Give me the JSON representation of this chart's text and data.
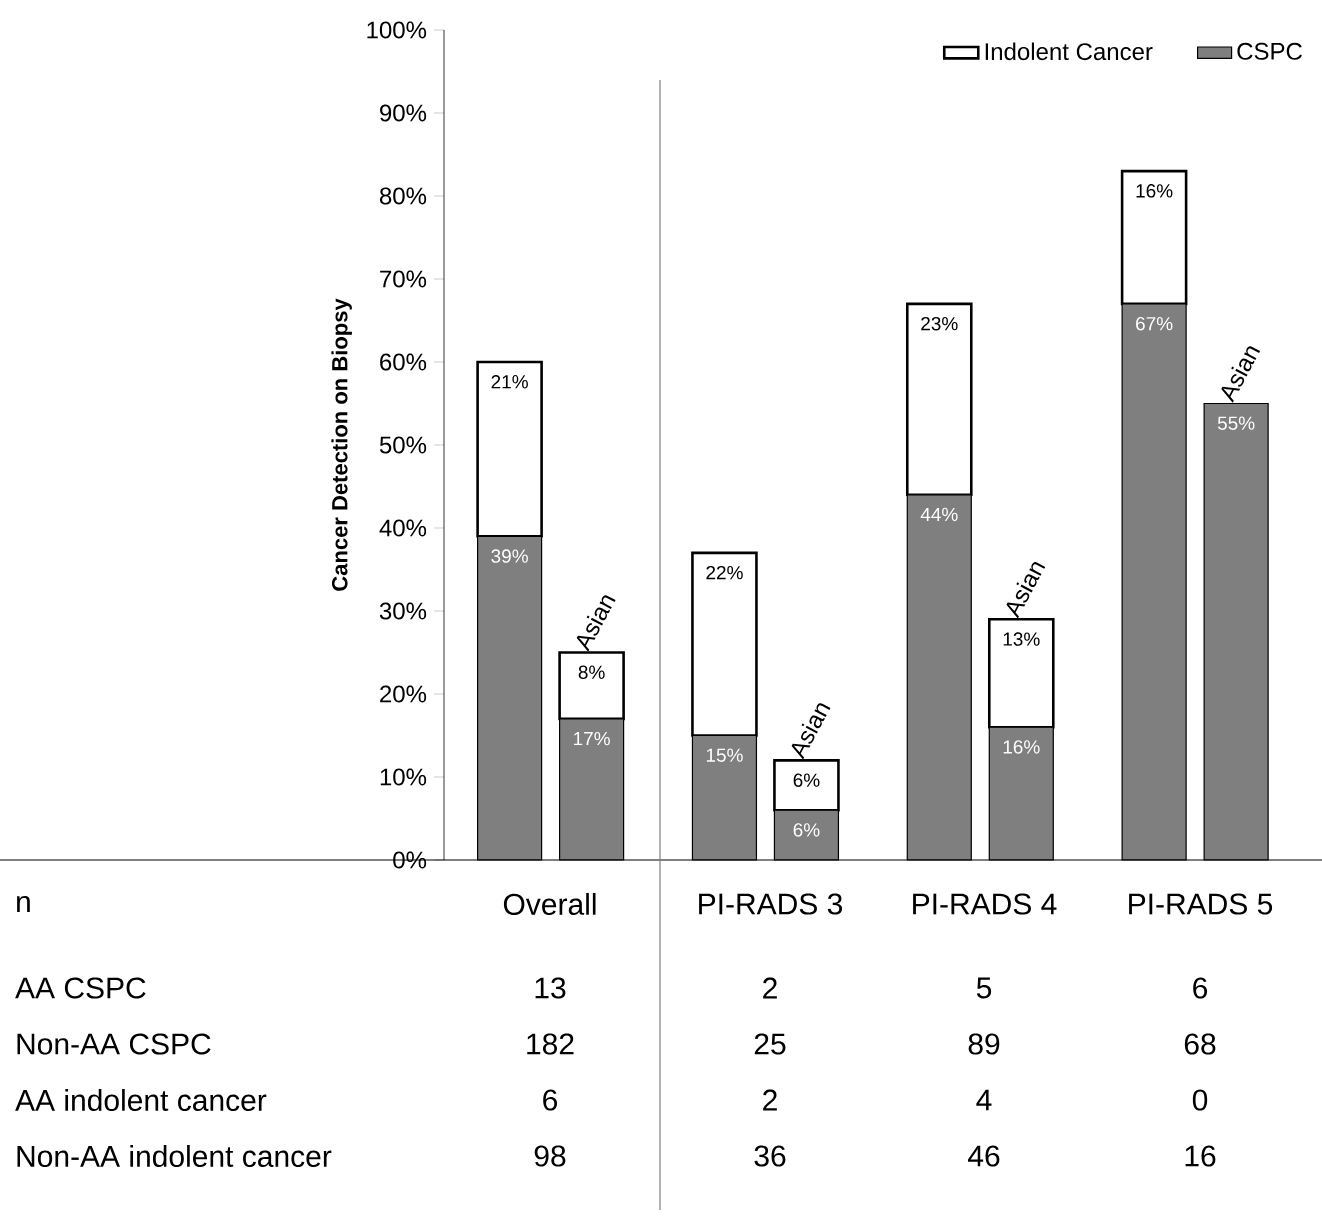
{
  "chart_data": {
    "type": "bar",
    "stacked": true,
    "ylabel": "Cancer Detection on Biopsy",
    "categories": [
      null,
      "Asian",
      null,
      "Asian",
      null,
      "Asian",
      null,
      "Asian"
    ],
    "series": [
      {
        "name": "CSPC",
        "color": "#7f7f7f",
        "values": [
          39,
          17,
          15,
          6,
          44,
          16,
          67,
          55
        ],
        "value_labels": [
          "39%",
          "17%",
          "15%",
          "6%",
          "44%",
          "16%",
          "67%",
          "55%"
        ]
      },
      {
        "name": "Indolent Cancer",
        "color": "#ffffff",
        "values": [
          21,
          8,
          22,
          6,
          23,
          13,
          16,
          0
        ],
        "value_labels": [
          "21%",
          "8%",
          "22%",
          "6%",
          "23%",
          "13%",
          "16%",
          null
        ]
      }
    ],
    "ylim": [
      0,
      100
    ],
    "yticks": [
      {
        "value": 0,
        "label": "0%"
      },
      {
        "value": 10,
        "label": "10%"
      },
      {
        "value": 20,
        "label": "20%"
      },
      {
        "value": 30,
        "label": "30%"
      },
      {
        "value": 40,
        "label": "40%"
      },
      {
        "value": 50,
        "label": "50%"
      },
      {
        "value": 60,
        "label": "60%"
      },
      {
        "value": 70,
        "label": "70%"
      },
      {
        "value": 80,
        "label": "80%"
      },
      {
        "value": 90,
        "label": "90%"
      },
      {
        "value": 100,
        "label": "100%"
      }
    ],
    "legend": "top right",
    "annotations": [
      "n",
      "Overall",
      "PI-RADS 3",
      "PI-RADS 4",
      "PI-RADS 5",
      "AA CSPC",
      "13",
      "2",
      "5",
      "6",
      "Non-AA CSPC",
      "182",
      "25",
      "89",
      "68",
      "AA indolent cancer",
      "6",
      "2",
      "4",
      "0",
      "Non-AA indolent cancer",
      "98",
      "36",
      "46",
      "16"
    ]
  }
}
